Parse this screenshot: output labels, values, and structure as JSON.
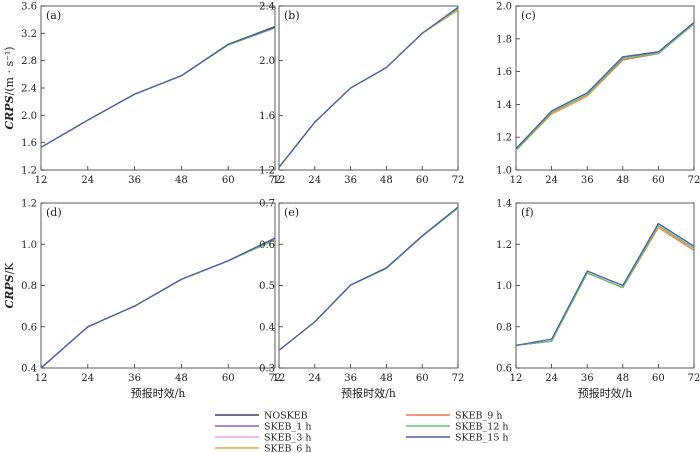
{
  "chart_data": [
    {
      "type": "line",
      "panel_label": "(a)",
      "ylabel_italic": "CRPS",
      "ylabel_unit": "/(m · s⁻¹)",
      "xlabel": "",
      "x": [
        12,
        24,
        36,
        48,
        60,
        72
      ],
      "ylim": [
        1.2,
        3.6
      ],
      "yticks": [
        "1.2",
        "1.6",
        "2.0",
        "2.4",
        "2.8",
        "3.2",
        "3.6"
      ],
      "series": [
        {
          "name": "NOSKEB",
          "values": [
            1.53,
            1.93,
            2.31,
            2.58,
            3.04,
            3.3
          ]
        },
        {
          "name": "SKEB_1 h",
          "values": [
            1.53,
            1.93,
            2.31,
            2.58,
            3.04,
            3.29
          ]
        },
        {
          "name": "SKEB_3 h",
          "values": [
            1.53,
            1.93,
            2.31,
            2.58,
            3.03,
            3.29
          ]
        },
        {
          "name": "SKEB_6 h",
          "values": [
            1.53,
            1.93,
            2.31,
            2.58,
            3.03,
            3.28
          ]
        },
        {
          "name": "SKEB_9 h",
          "values": [
            1.53,
            1.93,
            2.31,
            2.58,
            3.03,
            3.3
          ]
        },
        {
          "name": "SKEB_12 h",
          "values": [
            1.53,
            1.93,
            2.31,
            2.58,
            3.03,
            3.28
          ]
        },
        {
          "name": "SKEB_15 h",
          "values": [
            1.53,
            1.93,
            2.31,
            2.58,
            3.04,
            3.29
          ]
        }
      ]
    },
    {
      "type": "line",
      "panel_label": "(b)",
      "x": [
        12,
        24,
        36,
        48,
        60,
        72
      ],
      "ylim": [
        1.2,
        2.4
      ],
      "yticks": [
        "1.2",
        "1.6",
        "2.0",
        "2.4"
      ],
      "series": [
        {
          "name": "NOSKEB",
          "values": [
            1.22,
            1.55,
            1.8,
            1.95,
            2.2,
            2.39
          ]
        },
        {
          "name": "SKEB_1 h",
          "values": [
            1.22,
            1.55,
            1.8,
            1.95,
            2.2,
            2.38
          ]
        },
        {
          "name": "SKEB_3 h",
          "values": [
            1.22,
            1.55,
            1.8,
            1.95,
            2.2,
            2.38
          ]
        },
        {
          "name": "SKEB_6 h",
          "values": [
            1.22,
            1.55,
            1.8,
            1.95,
            2.2,
            2.37
          ]
        },
        {
          "name": "SKEB_9 h",
          "values": [
            1.22,
            1.55,
            1.8,
            1.95,
            2.2,
            2.37
          ]
        },
        {
          "name": "SKEB_12 h",
          "values": [
            1.22,
            1.55,
            1.8,
            1.95,
            2.2,
            2.38
          ]
        },
        {
          "name": "SKEB_15 h",
          "values": [
            1.22,
            1.55,
            1.8,
            1.95,
            2.2,
            2.39
          ]
        }
      ]
    },
    {
      "type": "line",
      "panel_label": "(c)",
      "x": [
        12,
        24,
        36,
        48,
        60,
        72
      ],
      "ylim": [
        1.0,
        2.0
      ],
      "yticks": [
        "1.0",
        "1.2",
        "1.4",
        "1.6",
        "1.8",
        "2.0"
      ],
      "series": [
        {
          "name": "NOSKEB",
          "values": [
            1.13,
            1.36,
            1.47,
            1.69,
            1.72,
            1.9
          ]
        },
        {
          "name": "SKEB_1 h",
          "values": [
            1.12,
            1.35,
            1.46,
            1.68,
            1.71,
            1.9
          ]
        },
        {
          "name": "SKEB_3 h",
          "values": [
            1.12,
            1.35,
            1.46,
            1.69,
            1.71,
            1.89
          ]
        },
        {
          "name": "SKEB_6 h",
          "values": [
            1.12,
            1.34,
            1.45,
            1.68,
            1.72,
            1.9
          ]
        },
        {
          "name": "SKEB_9 h",
          "values": [
            1.12,
            1.34,
            1.45,
            1.67,
            1.71,
            1.89
          ]
        },
        {
          "name": "SKEB_12 h",
          "values": [
            1.12,
            1.35,
            1.46,
            1.68,
            1.71,
            1.89
          ]
        },
        {
          "name": "SKEB_15 h",
          "values": [
            1.13,
            1.36,
            1.47,
            1.69,
            1.72,
            1.9
          ]
        }
      ]
    },
    {
      "type": "line",
      "panel_label": "(d)",
      "ylabel_italic": "CRPS",
      "ylabel_unit": "/K",
      "xlabel": "预报时效/h",
      "x": [
        12,
        24,
        36,
        48,
        60,
        72
      ],
      "ylim": [
        0.4,
        1.2
      ],
      "yticks": [
        "0.4",
        "0.6",
        "0.8",
        "1.0",
        "1.2"
      ],
      "series": [
        {
          "name": "NOSKEB",
          "values": [
            0.4,
            0.6,
            0.7,
            0.83,
            0.92,
            1.03
          ]
        },
        {
          "name": "SKEB_1 h",
          "values": [
            0.4,
            0.6,
            0.7,
            0.83,
            0.92,
            1.03
          ]
        },
        {
          "name": "SKEB_3 h",
          "values": [
            0.4,
            0.6,
            0.7,
            0.83,
            0.92,
            1.03
          ]
        },
        {
          "name": "SKEB_6 h",
          "values": [
            0.4,
            0.6,
            0.7,
            0.83,
            0.92,
            1.02
          ]
        },
        {
          "name": "SKEB_9 h",
          "values": [
            0.4,
            0.6,
            0.7,
            0.83,
            0.92,
            1.03
          ]
        },
        {
          "name": "SKEB_12 h",
          "values": [
            0.4,
            0.6,
            0.7,
            0.83,
            0.92,
            1.02
          ]
        },
        {
          "name": "SKEB_15 h",
          "values": [
            0.4,
            0.6,
            0.7,
            0.83,
            0.92,
            1.03
          ]
        }
      ]
    },
    {
      "type": "line",
      "panel_label": "(e)",
      "xlabel": "预报时效/h",
      "x": [
        12,
        24,
        36,
        48,
        60,
        72
      ],
      "ylim": [
        0.3,
        0.7
      ],
      "yticks": [
        "0.3",
        "0.4",
        "0.5",
        "0.6",
        "0.7"
      ],
      "series": [
        {
          "name": "NOSKEB",
          "values": [
            0.343,
            0.412,
            0.501,
            0.543,
            0.62,
            0.69
          ]
        },
        {
          "name": "SKEB_1 h",
          "values": [
            0.343,
            0.412,
            0.501,
            0.542,
            0.62,
            0.689
          ]
        },
        {
          "name": "SKEB_3 h",
          "values": [
            0.343,
            0.412,
            0.501,
            0.542,
            0.62,
            0.689
          ]
        },
        {
          "name": "SKEB_6 h",
          "values": [
            0.343,
            0.412,
            0.501,
            0.541,
            0.619,
            0.688
          ]
        },
        {
          "name": "SKEB_9 h",
          "values": [
            0.343,
            0.412,
            0.501,
            0.542,
            0.62,
            0.689
          ]
        },
        {
          "name": "SKEB_12 h",
          "values": [
            0.343,
            0.412,
            0.501,
            0.541,
            0.619,
            0.688
          ]
        },
        {
          "name": "SKEB_15 h",
          "values": [
            0.343,
            0.412,
            0.501,
            0.543,
            0.62,
            0.69
          ]
        }
      ]
    },
    {
      "type": "line",
      "panel_label": "(f)",
      "xlabel": "预报时效/h",
      "x": [
        12,
        24,
        36,
        48,
        60,
        72
      ],
      "ylim": [
        0.6,
        1.4
      ],
      "yticks": [
        "0.6",
        "0.8",
        "1.0",
        "1.2",
        "1.4"
      ],
      "series": [
        {
          "name": "NOSKEB",
          "values": [
            0.71,
            0.73,
            1.07,
            1.0,
            1.3,
            1.19
          ]
        },
        {
          "name": "SKEB_1 h",
          "values": [
            0.71,
            0.73,
            1.06,
            0.99,
            1.29,
            1.18
          ]
        },
        {
          "name": "SKEB_3 h",
          "values": [
            0.71,
            0.73,
            1.06,
            0.99,
            1.29,
            1.18
          ]
        },
        {
          "name": "SKEB_6 h",
          "values": [
            0.71,
            0.73,
            1.06,
            0.99,
            1.28,
            1.18
          ]
        },
        {
          "name": "SKEB_9 h",
          "values": [
            0.71,
            0.73,
            1.06,
            0.99,
            1.28,
            1.17
          ]
        },
        {
          "name": "SKEB_12 h",
          "values": [
            0.71,
            0.73,
            1.06,
            0.99,
            1.29,
            1.18
          ]
        },
        {
          "name": "SKEB_15 h",
          "values": [
            0.71,
            0.74,
            1.07,
            1.0,
            1.3,
            1.19
          ]
        }
      ]
    }
  ],
  "legend": {
    "placement": "bottom-center",
    "items": [
      {
        "name": "NOSKEB",
        "color": "#3d3d66"
      },
      {
        "name": "SKEB_9 h",
        "color": "#e8735a"
      },
      {
        "name": "SKEB_1 h",
        "color": "#8c63b8"
      },
      {
        "name": "SKEB_12 h",
        "color": "#6cc36c"
      },
      {
        "name": "SKEB_3 h",
        "color": "#f0a4d4"
      },
      {
        "name": "SKEB_15 h",
        "color": "#4a5fb0"
      },
      {
        "name": "SKEB_6 h",
        "color": "#f0a04a"
      }
    ]
  },
  "series_colors": {
    "NOSKEB": "#3d3d66",
    "SKEB_1 h": "#8c63b8",
    "SKEB_3 h": "#f0a4d4",
    "SKEB_6 h": "#f0a04a",
    "SKEB_9 h": "#e8735a",
    "SKEB_12 h": "#6cc36c",
    "SKEB_15 h": "#4a5fb0"
  },
  "draw_order": [
    "SKEB_3 h",
    "SKEB_9 h",
    "SKEB_6 h",
    "SKEB_1 h",
    "NOSKEB",
    "SKEB_12 h",
    "SKEB_15 h"
  ]
}
